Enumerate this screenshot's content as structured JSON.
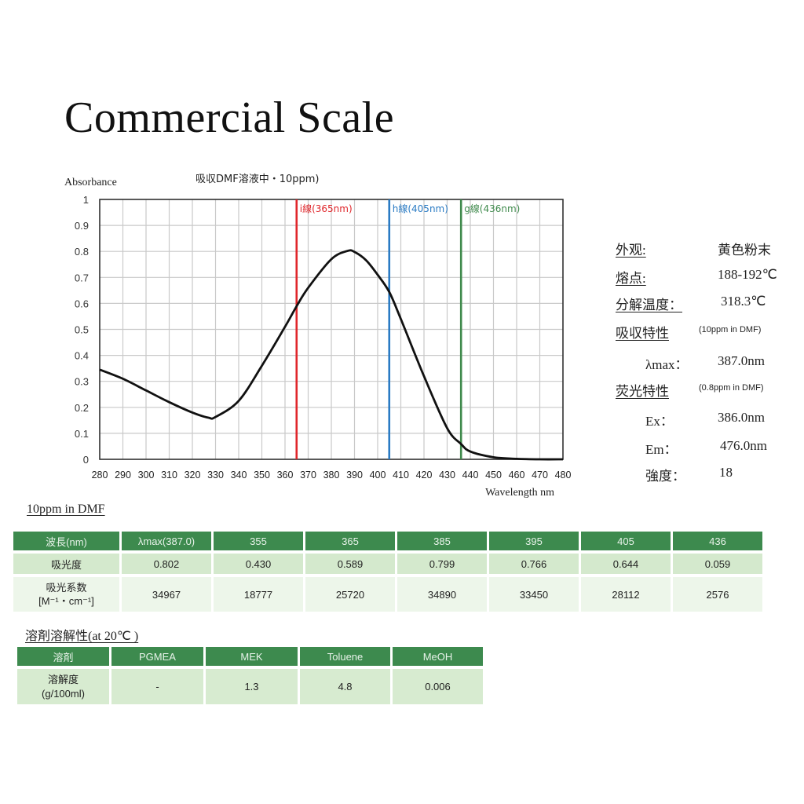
{
  "title": "Commercial Scale",
  "chart_data": {
    "type": "line",
    "title": "吸収DMF溶液中・10ppm)",
    "ylabel": "Absorbance",
    "xlabel": "Wavelength nm",
    "xlim": [
      280,
      480
    ],
    "ylim": [
      0,
      1
    ],
    "grid": true,
    "x_ticks": [
      "280",
      "290",
      "300",
      "310",
      "320",
      "330",
      "340",
      "350",
      "360",
      "370",
      "380",
      "390",
      "400",
      "410",
      "420",
      "430",
      "440",
      "450",
      "460",
      "470",
      "480"
    ],
    "y_ticks": [
      "0",
      "0.1",
      "0.2",
      "0.3",
      "0.4",
      "0.5",
      "0.6",
      "0.7",
      "0.8",
      "0.9",
      "1"
    ],
    "series": [
      {
        "name": "Absorbance",
        "color": "#111111",
        "x": [
          280,
          290,
          300,
          310,
          320,
          327,
          330,
          340,
          350,
          360,
          365,
          370,
          380,
          387,
          390,
          395,
          400,
          405,
          410,
          420,
          430,
          436,
          440,
          450,
          460,
          470,
          480
        ],
        "values": [
          0.345,
          0.31,
          0.265,
          0.22,
          0.18,
          0.16,
          0.163,
          0.225,
          0.36,
          0.51,
          0.589,
          0.66,
          0.77,
          0.802,
          0.798,
          0.766,
          0.71,
          0.644,
          0.54,
          0.32,
          0.12,
          0.059,
          0.03,
          0.008,
          0.002,
          0.0,
          0.0
        ]
      }
    ],
    "annotations": [
      {
        "label": "i線(365nm)",
        "x": 365,
        "color": "#e0262b"
      },
      {
        "label": "h線(405nm)",
        "x": 405,
        "color": "#2a7bc4"
      },
      {
        "label": "g線(436nm)",
        "x": 436,
        "color": "#3f8a4c"
      }
    ]
  },
  "properties": [
    {
      "label": "外观:",
      "value": "黄色粉末",
      "underline": true
    },
    {
      "label": "熔点:",
      "value": "188-192℃",
      "underline": true
    },
    {
      "label": "分解温度：",
      "value": "318.3℃",
      "underline": true
    },
    {
      "label": "吸収特性",
      "note": "(10ppm  in DMF)",
      "underline": true
    },
    {
      "label": "λmax：",
      "value": "387.0nm",
      "underline": false
    },
    {
      "label": "荧光特性",
      "note": "(0.8ppm  in DMF)",
      "underline": true
    },
    {
      "label": "Ex：",
      "value": "386.0nm",
      "underline": false
    },
    {
      "label": "Em：",
      "value": "476.0nm",
      "underline": false
    },
    {
      "label": "強度：",
      "value": "18",
      "underline": false
    }
  ],
  "absorption_table": {
    "title": "10ppm in DMF",
    "headers": [
      "波長(nm)",
      "λmax(387.0)",
      "355",
      "365",
      "385",
      "395",
      "405",
      "436"
    ],
    "rows": [
      {
        "label": "吸光度",
        "sublabel": "",
        "values": [
          "0.802",
          "0.430",
          "0.589",
          "0.799",
          "0.766",
          "0.644",
          "0.059"
        ]
      },
      {
        "label": "吸光系数",
        "sublabel": "[M⁻¹・cm⁻¹]",
        "values": [
          "34967",
          "18777",
          "25720",
          "34890",
          "33450",
          "28112",
          "2576"
        ]
      }
    ]
  },
  "solubility_table": {
    "title": "溶剤溶解性(at 20℃ )",
    "headers": [
      "溶剤",
      "PGMEA",
      "MEK",
      "Toluene",
      "MeOH"
    ],
    "rows": [
      {
        "label": "溶解度",
        "sublabel": "(g/100ml)",
        "values": [
          "-",
          "1.3",
          "4.8",
          "0.006"
        ]
      }
    ]
  },
  "colors": {
    "table_header": "#3d8a4e",
    "row_light": "#d4e9cd",
    "row_lighter": "#edf6ea",
    "i_line": "#e0262b",
    "h_line": "#2a7bc4",
    "g_line": "#3f8a4c"
  }
}
